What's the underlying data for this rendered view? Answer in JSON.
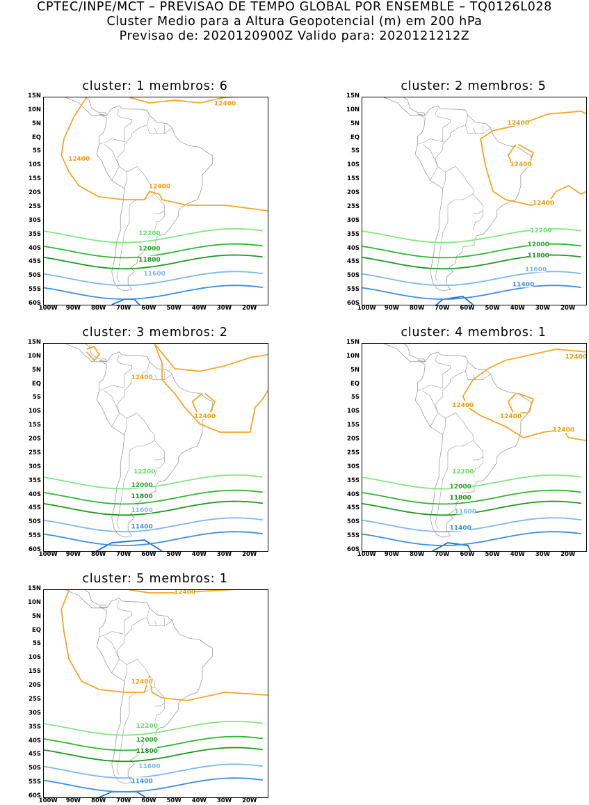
{
  "header": {
    "line1": "CPTEC/INPE/MCT – PREVISAO DE TEMPO GLOBAL POR ENSEMBLE – TQ0126L028",
    "line2": "Cluster Medio para a Altura Geopotencial (m) em 200 hPa",
    "line3": "Previsao de: 2020120900Z    Valido para: 2020121212Z"
  },
  "axes": {
    "lat_labels": [
      "15N",
      "10N",
      "5N",
      "EQ",
      "5S",
      "10S",
      "15S",
      "20S",
      "25S",
      "30S",
      "35S",
      "40S",
      "45S",
      "50S",
      "55S",
      "60S"
    ],
    "lon_labels": [
      "100W",
      "90W",
      "80W",
      "70W",
      "60W",
      "50W",
      "40W",
      "30W",
      "20W"
    ]
  },
  "colors": {
    "c12400": "#f5a623",
    "c12200": "#7fe87f",
    "c12000": "#2db82d",
    "c11800": "#1a9a1a",
    "c11600": "#7cb8f0",
    "c11400": "#3a8ee6",
    "c11200": "#1f6fd6",
    "land": "#9a9a9a"
  },
  "panels": [
    {
      "title": "cluster: 1   membros: 6",
      "labels": [
        {
          "text": "12400",
          "color": "#f39c12"
        },
        {
          "text": "12400",
          "color": "#f39c12"
        },
        {
          "text": "12400",
          "color": "#f39c12"
        },
        {
          "text": "12200",
          "color": "#66e066"
        },
        {
          "text": "12000",
          "color": "#22aa22"
        },
        {
          "text": "11800",
          "color": "#1a8f1a"
        },
        {
          "text": "11600",
          "color": "#7cb8f0"
        }
      ]
    },
    {
      "title": "cluster: 2   membros: 5",
      "labels": [
        {
          "text": "12400",
          "color": "#f39c12"
        },
        {
          "text": "12400",
          "color": "#f39c12"
        },
        {
          "text": "12400",
          "color": "#f39c12"
        },
        {
          "text": "12200",
          "color": "#66e066"
        },
        {
          "text": "12000",
          "color": "#22aa22"
        },
        {
          "text": "11800",
          "color": "#1a8f1a"
        },
        {
          "text": "11600",
          "color": "#7cb8f0"
        },
        {
          "text": "11400",
          "color": "#3a8ee6"
        }
      ]
    },
    {
      "title": "cluster: 3   membros: 2",
      "labels": [
        {
          "text": "12400",
          "color": "#f39c12"
        },
        {
          "text": "12400",
          "color": "#f39c12"
        },
        {
          "text": "12200",
          "color": "#66e066"
        },
        {
          "text": "12000",
          "color": "#22aa22"
        },
        {
          "text": "11800",
          "color": "#1a8f1a"
        },
        {
          "text": "11600",
          "color": "#7cb8f0"
        },
        {
          "text": "11400",
          "color": "#3a8ee6"
        }
      ]
    },
    {
      "title": "cluster: 4   membros: 1",
      "labels": [
        {
          "text": "12400",
          "color": "#f39c12"
        },
        {
          "text": "12400",
          "color": "#f39c12"
        },
        {
          "text": "12400",
          "color": "#f39c12"
        },
        {
          "text": "12400",
          "color": "#f39c12"
        },
        {
          "text": "12200",
          "color": "#66e066"
        },
        {
          "text": "12000",
          "color": "#22aa22"
        },
        {
          "text": "11800",
          "color": "#1a8f1a"
        },
        {
          "text": "11600",
          "color": "#7cb8f0"
        },
        {
          "text": "11400",
          "color": "#3a8ee6"
        }
      ]
    },
    {
      "title": "cluster: 5   membros: 1",
      "labels": [
        {
          "text": "12400",
          "color": "#f39c12"
        },
        {
          "text": "12400",
          "color": "#f39c12"
        },
        {
          "text": "12200",
          "color": "#66e066"
        },
        {
          "text": "12000",
          "color": "#22aa22"
        },
        {
          "text": "11800",
          "color": "#1a8f1a"
        },
        {
          "text": "11600",
          "color": "#7cb8f0"
        },
        {
          "text": "11400",
          "color": "#3a8ee6"
        }
      ]
    }
  ]
}
